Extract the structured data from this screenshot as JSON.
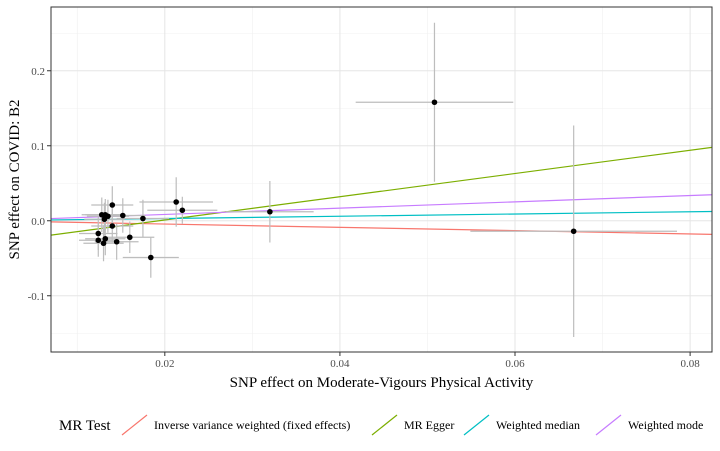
{
  "chart_data": {
    "type": "scatter",
    "title": "",
    "xlabel": "SNP effect on Moderate-Vigours Physical Activity",
    "ylabel": "SNP effect on COVID: B2",
    "xlim": [
      0.007,
      0.0825
    ],
    "ylim": [
      -0.175,
      0.285
    ],
    "x_ticks": [
      0.02,
      0.04,
      0.06,
      0.08
    ],
    "x_tick_labels": [
      "0.02",
      "0.04",
      "0.06",
      "0.08"
    ],
    "y_ticks": [
      -0.1,
      0.0,
      0.1,
      0.2
    ],
    "y_tick_labels": [
      "-0.1",
      "0.0",
      "0.1",
      "0.2"
    ],
    "grid": true,
    "points": [
      {
        "x": 0.0508,
        "y": 0.158,
        "x_err": 0.009,
        "y_err": 0.106
      },
      {
        "x": 0.0667,
        "y": -0.014,
        "x_err": 0.0118,
        "y_err": 0.141
      },
      {
        "x": 0.032,
        "y": 0.012,
        "x_err": 0.005,
        "y_err": 0.041
      },
      {
        "x": 0.0213,
        "y": 0.025,
        "x_err": 0.0042,
        "y_err": 0.033
      },
      {
        "x": 0.022,
        "y": 0.014,
        "x_err": 0.004,
        "y_err": 0.018
      },
      {
        "x": 0.0184,
        "y": -0.049,
        "x_err": 0.0032,
        "y_err": 0.027
      },
      {
        "x": 0.0175,
        "y": 0.003,
        "x_err": 0.003,
        "y_err": 0.025
      },
      {
        "x": 0.016,
        "y": -0.022,
        "x_err": 0.0028,
        "y_err": 0.021
      },
      {
        "x": 0.0152,
        "y": 0.007,
        "x_err": 0.0026,
        "y_err": 0.023
      },
      {
        "x": 0.0145,
        "y": -0.028,
        "x_err": 0.0025,
        "y_err": 0.024
      },
      {
        "x": 0.014,
        "y": 0.021,
        "x_err": 0.0024,
        "y_err": 0.025
      },
      {
        "x": 0.014,
        "y": -0.007,
        "x_err": 0.0024,
        "y_err": 0.022
      },
      {
        "x": 0.0135,
        "y": 0.006,
        "x_err": 0.0024,
        "y_err": 0.022
      },
      {
        "x": 0.0132,
        "y": 0.008,
        "x_err": 0.0023,
        "y_err": 0.021
      },
      {
        "x": 0.0131,
        "y": 0.002,
        "x_err": 0.0023,
        "y_err": 0.022
      },
      {
        "x": 0.0128,
        "y": 0.008,
        "x_err": 0.0023,
        "y_err": 0.023
      },
      {
        "x": 0.0132,
        "y": -0.024,
        "x_err": 0.0023,
        "y_err": 0.022
      },
      {
        "x": 0.013,
        "y": -0.03,
        "x_err": 0.0023,
        "y_err": 0.024
      },
      {
        "x": 0.0124,
        "y": -0.017,
        "x_err": 0.0022,
        "y_err": 0.022
      },
      {
        "x": 0.0124,
        "y": -0.026,
        "x_err": 0.0022,
        "y_err": 0.022
      }
    ],
    "legend": {
      "title": "MR Test",
      "position": "bottom"
    },
    "series": [
      {
        "name": "Inverse variance weighted (fixed effects)",
        "color": "#F8766D",
        "intercept": 0,
        "slope": -0.22
      },
      {
        "name": "MR Egger",
        "color": "#7CAE00",
        "intercept": -0.03,
        "slope": 1.55
      },
      {
        "name": "Weighted median",
        "color": "#00BFC4",
        "intercept": 0,
        "slope": 0.15
      },
      {
        "name": "Weighted mode",
        "color": "#C77CFF",
        "intercept": 0,
        "slope": 0.42
      }
    ],
    "point_color": "#000000",
    "errorbar_color": "#bdbdbd"
  }
}
